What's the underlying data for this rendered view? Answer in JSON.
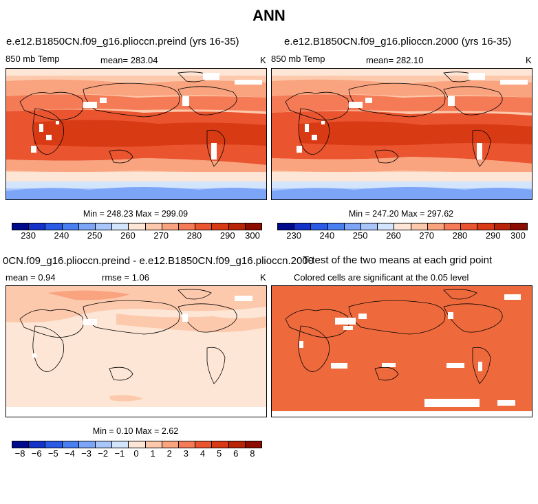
{
  "title": "ANN",
  "panels": [
    {
      "id": "p1",
      "case_title": "e.e12.B1850CN.f09_g16.plioccn.preind (yrs 16-35)",
      "left_label": "850 mb Temp",
      "mean_text": "mean= 283.04",
      "units": "K",
      "min_max": "Min = 248.23 Max = 299.09"
    },
    {
      "id": "p2",
      "case_title": "e.e12.B1850CN.f09_g16.plioccn.2000 (yrs 16-35)",
      "left_label": "850 mb Temp",
      "mean_text": "mean= 282.10",
      "units": "K",
      "min_max": "Min = 247.20 Max = 297.62"
    },
    {
      "id": "p3",
      "case_title": "0CN.f09_g16.plioccn.preind - e.e12.B1850CN.f09_g16.plioccn.2000",
      "mean_text": "mean =    0.94",
      "rmse_text": "rmse =    1.06",
      "units": "K",
      "min_max": "Min =   0.10 Max =   2.62"
    },
    {
      "id": "p4",
      "case_title": "T-test of the two means at each grid point",
      "subtitle": "Colored cells are significant at the 0.05 level"
    }
  ],
  "colorbar_colors": [
    "#000b8c",
    "#1432c8",
    "#2a5ae6",
    "#4a7ff2",
    "#7ca4f7",
    "#a9c6fb",
    "#d3e4fd",
    "#fde6d6",
    "#fcc9ac",
    "#f9a37f",
    "#f47b56",
    "#ea5530",
    "#d83a14",
    "#b92307",
    "#8c0c00"
  ],
  "colorbar_temp_ticks": [
    "230",
    "240",
    "250",
    "260",
    "270",
    "280",
    "290",
    "300"
  ],
  "colorbar_diff_ticks": [
    "−8",
    "−6",
    "−5",
    "−4",
    "−3",
    "−2",
    "−1",
    "0",
    "1",
    "2",
    "3",
    "4",
    "5",
    "6",
    "8"
  ],
  "ttest_color": "#ee6a3c"
}
